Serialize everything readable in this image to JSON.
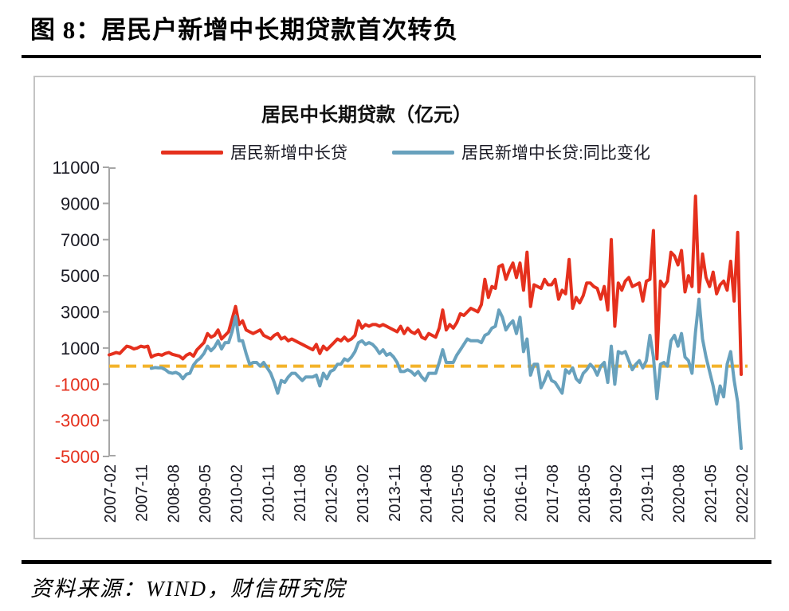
{
  "page": {
    "figure_title": "图 8：居民户新增中长期贷款首次转负",
    "source": "资料来源：WIND，财信研究院"
  },
  "colors": {
    "series_red": "#e5301d",
    "series_blue": "#68a1bd",
    "zero_line": "#f3b32b",
    "axis": "#a6a6a6",
    "tick_label": "#1a1a24",
    "tick_label_negative": "#e5301d"
  },
  "chart_data": {
    "type": "line",
    "title": "居民中长期贷款（亿元）",
    "unit": "亿元",
    "legend_position": "top",
    "grid": false,
    "ylim": [
      -5000,
      11000
    ],
    "y_ticks": [
      11000,
      9000,
      7000,
      5000,
      3000,
      1000,
      -1000,
      -3000,
      -5000
    ],
    "x_axis": {
      "start": "2007-02",
      "end": "2022-02",
      "frequency": "monthly",
      "points": 181
    },
    "x_tick_interval_months": 9,
    "x_tick_labels": [
      "2007-02",
      "2007-11",
      "2008-08",
      "2009-05",
      "2010-02",
      "2010-11",
      "2011-08",
      "2012-05",
      "2013-02",
      "2013-11",
      "2014-08",
      "2015-05",
      "2016-02",
      "2016-11",
      "2017-08",
      "2018-05",
      "2019-02",
      "2019-11",
      "2020-08",
      "2021-05",
      "2022-02"
    ],
    "zero_line": {
      "value": 0,
      "style": "dashed"
    },
    "series": [
      {
        "id": "red-line",
        "name": "居民新增中长贷",
        "color": "#e5301d",
        "values": [
          620,
          680,
          750,
          700,
          900,
          1100,
          1050,
          950,
          1000,
          1100,
          1050,
          1100,
          500,
          600,
          650,
          600,
          700,
          750,
          650,
          600,
          550,
          400,
          600,
          700,
          550,
          900,
          1100,
          1300,
          1800,
          1600,
          1700,
          2000,
          1500,
          1700,
          1900,
          2600,
          3300,
          2300,
          2500,
          2000,
          1900,
          1800,
          1900,
          2000,
          1700,
          1600,
          1500,
          1700,
          1800,
          1500,
          1600,
          1400,
          1500,
          1400,
          1300,
          1200,
          1100,
          1000,
          900,
          1200,
          700,
          1100,
          900,
          1100,
          1300,
          1500,
          1400,
          1600,
          1400,
          1500,
          1700,
          2500,
          2100,
          2300,
          2200,
          2300,
          2300,
          2200,
          2300,
          2200,
          2100,
          2000,
          1900,
          2200,
          1800,
          2100,
          1900,
          1800,
          2000,
          1600,
          1500,
          1800,
          1700,
          1600,
          2100,
          3100,
          2000,
          2300,
          2100,
          2400,
          2900,
          2800,
          3000,
          3200,
          3100,
          3000,
          3400,
          4800,
          3800,
          4400,
          4300,
          5500,
          5600,
          4800,
          5300,
          5700,
          4900,
          5700,
          4200,
          6300,
          3300,
          4500,
          4400,
          4300,
          4800,
          4500,
          4500,
          4800,
          3700,
          4200,
          4000,
          5900,
          3200,
          3800,
          3500,
          3900,
          4600,
          4600,
          4400,
          4300,
          3700,
          4400,
          3100,
          7000,
          2200,
          4600,
          4200,
          4700,
          4900,
          4400,
          4500,
          4600,
          3600,
          4700,
          4800,
          7500,
          400,
          4700,
          4400,
          4700,
          6300,
          6100,
          5600,
          6400,
          4100,
          5000,
          4400,
          9400,
          4100,
          6200,
          4900,
          4400,
          5200,
          4000,
          4500,
          4700,
          4200,
          5800,
          3600,
          7400,
          -460
        ]
      },
      {
        "id": "blue-line",
        "name": "居民新增中长贷:同比变化",
        "color": "#68a1bd",
        "values": [
          null,
          null,
          null,
          null,
          null,
          null,
          null,
          null,
          null,
          null,
          null,
          null,
          -120,
          -80,
          -100,
          -100,
          -200,
          -350,
          -400,
          -350,
          -450,
          -700,
          -450,
          -400,
          50,
          300,
          450,
          700,
          1100,
          850,
          1050,
          1400,
          950,
          1300,
          1300,
          1900,
          2750,
          1400,
          1400,
          700,
          100,
          200,
          200,
          0,
          200,
          -100,
          -400,
          -900,
          -1500,
          -800,
          -900,
          -600,
          -400,
          -400,
          -600,
          -800,
          -600,
          -600,
          -600,
          -500,
          -1100,
          -400,
          -700,
          -300,
          -200,
          100,
          100,
          400,
          300,
          500,
          800,
          1300,
          1400,
          1200,
          1300,
          1200,
          1000,
          700,
          900,
          600,
          700,
          500,
          200,
          -300,
          -300,
          -200,
          -300,
          -500,
          -300,
          -600,
          -800,
          -400,
          -400,
          -400,
          200,
          900,
          200,
          200,
          200,
          600,
          900,
          1200,
          1500,
          1400,
          1400,
          1400,
          1300,
          1700,
          1800,
          2100,
          2200,
          3100,
          2700,
          2000,
          2300,
          2500,
          1800,
          2700,
          800,
          1500,
          -500,
          100,
          100,
          -1200,
          -800,
          -300,
          -800,
          -900,
          -1200,
          -1500,
          -200,
          -400,
          -100,
          -700,
          -900,
          -400,
          -200,
          100,
          -100,
          -500,
          0,
          200,
          -900,
          1100,
          -1000,
          800,
          700,
          800,
          300,
          -200,
          100,
          300,
          -100,
          300,
          1700,
          500,
          -1800,
          100,
          200,
          0,
          1400,
          1700,
          1100,
          1800,
          500,
          300,
          -400,
          1900,
          3700,
          1500,
          500,
          -300,
          -1100,
          -2100,
          -1100,
          -1700,
          100,
          800,
          -800,
          -2000,
          -4560
        ]
      }
    ]
  }
}
